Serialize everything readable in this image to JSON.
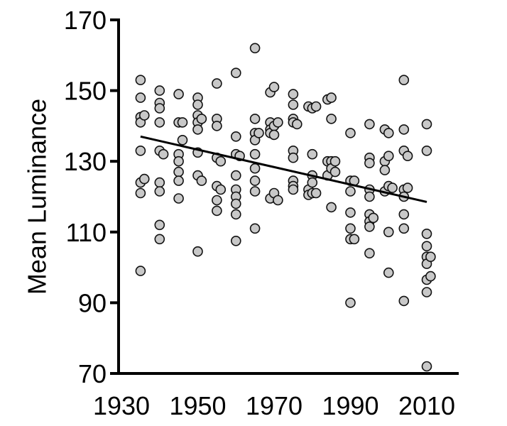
{
  "chart_data": {
    "type": "scatter",
    "xlabel": "",
    "ylabel": "Mean Luminance",
    "xlim": [
      1930,
      2018
    ],
    "ylim": [
      70,
      170
    ],
    "x_ticks": [
      1930,
      1950,
      1970,
      1990,
      2010
    ],
    "y_ticks": [
      70,
      90,
      110,
      130,
      150,
      170
    ],
    "grid": false,
    "colors": {
      "point_fill": "#c8c8c8",
      "point_stroke": "#111111",
      "trend_line": "#000000",
      "axis": "#000000"
    },
    "trendline": {
      "x": [
        1935,
        2010
      ],
      "y": [
        137,
        118.5
      ]
    },
    "series": [
      {
        "points": [
          [
            1935,
            153
          ],
          [
            1935,
            148
          ],
          [
            1935,
            142.5
          ],
          [
            1935,
            141
          ],
          [
            1935,
            133
          ],
          [
            1935,
            124
          ],
          [
            1935,
            121
          ],
          [
            1935,
            99
          ],
          [
            1936,
            143
          ],
          [
            1936,
            125
          ],
          [
            1940,
            150
          ],
          [
            1940,
            146.5
          ],
          [
            1940,
            145
          ],
          [
            1940,
            141
          ],
          [
            1940,
            133
          ],
          [
            1940,
            124
          ],
          [
            1940,
            121.5
          ],
          [
            1940,
            112
          ],
          [
            1940,
            108
          ],
          [
            1941,
            132
          ],
          [
            1945,
            149
          ],
          [
            1945,
            141
          ],
          [
            1945,
            132
          ],
          [
            1945,
            130
          ],
          [
            1945,
            127
          ],
          [
            1945,
            124.5
          ],
          [
            1945,
            119.5
          ],
          [
            1946,
            141
          ],
          [
            1946,
            136
          ],
          [
            1950,
            148
          ],
          [
            1950,
            146
          ],
          [
            1950,
            143
          ],
          [
            1950,
            141
          ],
          [
            1950,
            139
          ],
          [
            1950,
            132.5
          ],
          [
            1950,
            126
          ],
          [
            1950,
            104.5
          ],
          [
            1951,
            142
          ],
          [
            1951,
            124.5
          ],
          [
            1955,
            152
          ],
          [
            1955,
            142
          ],
          [
            1955,
            140
          ],
          [
            1955,
            131
          ],
          [
            1955,
            123
          ],
          [
            1955,
            119
          ],
          [
            1955,
            116
          ],
          [
            1956,
            130
          ],
          [
            1956,
            122
          ],
          [
            1960,
            155
          ],
          [
            1960,
            137
          ],
          [
            1960,
            132
          ],
          [
            1960,
            126
          ],
          [
            1960,
            122
          ],
          [
            1960,
            120
          ],
          [
            1960,
            118
          ],
          [
            1960,
            115
          ],
          [
            1960,
            107.5
          ],
          [
            1961,
            131.5
          ],
          [
            1965,
            162
          ],
          [
            1965,
            142
          ],
          [
            1965,
            138
          ],
          [
            1965,
            136
          ],
          [
            1965,
            132
          ],
          [
            1965,
            128
          ],
          [
            1965,
            124.5
          ],
          [
            1965,
            121.5
          ],
          [
            1965,
            111
          ],
          [
            1966,
            138
          ],
          [
            1969,
            149.5
          ],
          [
            1969,
            141
          ],
          [
            1969,
            139
          ],
          [
            1969,
            138
          ],
          [
            1969,
            119.5
          ],
          [
            1970,
            151
          ],
          [
            1970,
            140
          ],
          [
            1970,
            137.5
          ],
          [
            1970,
            121
          ],
          [
            1971,
            141
          ],
          [
            1971,
            119
          ],
          [
            1975,
            149
          ],
          [
            1975,
            146
          ],
          [
            1975,
            142
          ],
          [
            1975,
            141
          ],
          [
            1975,
            133
          ],
          [
            1975,
            131
          ],
          [
            1975,
            124.5
          ],
          [
            1975,
            123
          ],
          [
            1975,
            122
          ],
          [
            1976,
            140.5
          ],
          [
            1979,
            145.5
          ],
          [
            1979,
            122
          ],
          [
            1979,
            120.5
          ],
          [
            1980,
            145
          ],
          [
            1980,
            132
          ],
          [
            1980,
            126
          ],
          [
            1980,
            124
          ],
          [
            1980,
            121
          ],
          [
            1981,
            145.5
          ],
          [
            1981,
            121
          ],
          [
            1984,
            147.5
          ],
          [
            1984,
            130
          ],
          [
            1984,
            126
          ],
          [
            1985,
            148
          ],
          [
            1985,
            142
          ],
          [
            1985,
            130
          ],
          [
            1985,
            128
          ],
          [
            1985,
            117
          ],
          [
            1986,
            130
          ],
          [
            1986,
            127
          ],
          [
            1990,
            138
          ],
          [
            1990,
            124.5
          ],
          [
            1990,
            121.5
          ],
          [
            1990,
            115.5
          ],
          [
            1990,
            111
          ],
          [
            1990,
            108
          ],
          [
            1990,
            90
          ],
          [
            1991,
            124.5
          ],
          [
            1991,
            108
          ],
          [
            1995,
            140.5
          ],
          [
            1995,
            131
          ],
          [
            1995,
            129.5
          ],
          [
            1995,
            122
          ],
          [
            1995,
            120
          ],
          [
            1995,
            115
          ],
          [
            1995,
            113
          ],
          [
            1995,
            111.5
          ],
          [
            1995,
            104
          ],
          [
            1996,
            114
          ],
          [
            1999,
            139
          ],
          [
            1999,
            130
          ],
          [
            1999,
            127.5
          ],
          [
            1999,
            121.5
          ],
          [
            2000,
            138
          ],
          [
            2000,
            131.5
          ],
          [
            2000,
            123
          ],
          [
            2000,
            110
          ],
          [
            2000,
            98.5
          ],
          [
            2001,
            122.5
          ],
          [
            2004,
            153
          ],
          [
            2004,
            139
          ],
          [
            2004,
            133
          ],
          [
            2004,
            122
          ],
          [
            2004,
            120
          ],
          [
            2004,
            115
          ],
          [
            2004,
            111
          ],
          [
            2004,
            90.5
          ],
          [
            2005,
            131.5
          ],
          [
            2005,
            122.5
          ],
          [
            2010,
            140.5
          ],
          [
            2010,
            133
          ],
          [
            2010,
            109.5
          ],
          [
            2010,
            106
          ],
          [
            2010,
            103
          ],
          [
            2010,
            101
          ],
          [
            2010,
            96.5
          ],
          [
            2010,
            93
          ],
          [
            2010,
            72
          ],
          [
            2011,
            103
          ],
          [
            2011,
            97.5
          ]
        ]
      }
    ]
  }
}
